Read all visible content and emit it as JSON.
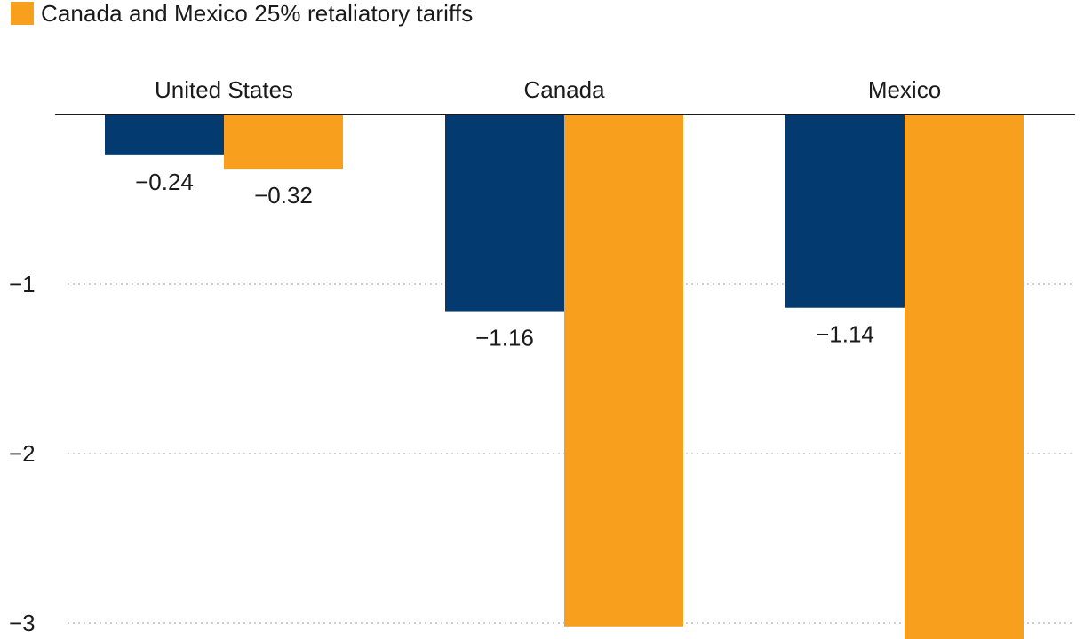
{
  "colors": {
    "navy": "#033B70",
    "orange": "#F99F1E",
    "grid": "#b5b5b5",
    "axis": "#1a1a1a"
  },
  "legend": {
    "visible_label": "Canada and Mexico 25% retaliatory tariffs",
    "visible_color": "orange"
  },
  "chart_data": {
    "type": "bar",
    "categories": [
      "United States",
      "Canada",
      "Mexico"
    ],
    "series": [
      {
        "color": "navy",
        "values": [
          -0.24,
          -1.16,
          -1.14
        ],
        "labels": [
          "−0.24",
          "−1.16",
          "−1.14"
        ]
      },
      {
        "name": "Canada and Mexico 25% retaliatory tariffs",
        "color": "orange",
        "values": [
          -0.32,
          -3.02,
          -3.1
        ],
        "labels": [
          "−0.32",
          "",
          ""
        ]
      }
    ],
    "ylim": [
      -3.1,
      0
    ],
    "yticks": [
      -1,
      -2,
      -3
    ],
    "ytick_labels": [
      "−1",
      "−2",
      "−3"
    ],
    "grid": true,
    "xlabel": "",
    "ylabel": ""
  }
}
